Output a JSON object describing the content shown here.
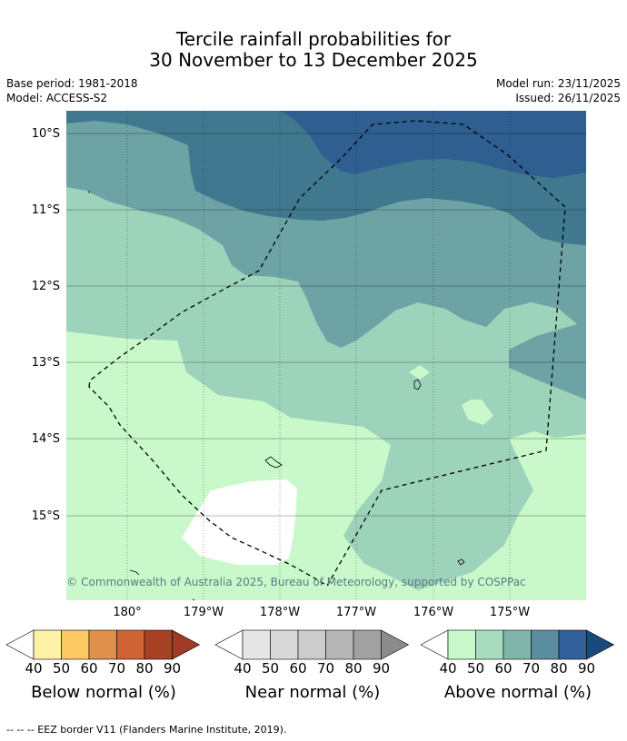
{
  "title": {
    "line1": "Tercile rainfall probabilities for",
    "line2": "30 November to 13 December 2025"
  },
  "meta": {
    "base_period": "Base period: 1981-2018",
    "model": "Model: ACCESS-S2",
    "model_run": "Model run: 23/11/2025",
    "issued": "Issued: 26/11/2025"
  },
  "map": {
    "lat_labels": [
      "10°S",
      "11°S",
      "12°S",
      "13°S",
      "14°S",
      "15°S"
    ],
    "lon_labels": [
      "180°",
      "179°W",
      "178°W",
      "177°W",
      "176°W",
      "175°W"
    ],
    "copyright": "© Commonwealth of Australia 2025, Bureau of Meteorology, supported by COSPPac",
    "colors": {
      "above_40": "#c9f9ca",
      "above_50": "#9ed3bb",
      "above_60": "#6ea3a5",
      "above_70": "#40798f",
      "above_80": "#2f5e90",
      "eez_line": "#000000"
    }
  },
  "colorbars": [
    {
      "name": "below",
      "title": "Below normal (%)",
      "ticks": [
        "40",
        "50",
        "60",
        "70",
        "80",
        "90"
      ],
      "colors": [
        "#ffffff",
        "#fff1a6",
        "#fdc964",
        "#e0904a",
        "#cf6334",
        "#a94124",
        "#a03a26"
      ]
    },
    {
      "name": "near",
      "title": "Near normal (%)",
      "ticks": [
        "40",
        "50",
        "60",
        "70",
        "80",
        "90"
      ],
      "colors": [
        "#ffffff",
        "#e6e6e6",
        "#d9d9d9",
        "#cccccc",
        "#b7b7b7",
        "#a1a1a1",
        "#8c8c8c"
      ]
    },
    {
      "name": "above",
      "title": "Above normal (%)",
      "ticks": [
        "40",
        "50",
        "60",
        "70",
        "80",
        "90"
      ],
      "colors": [
        "#ffffff",
        "#c9f9ca",
        "#a9dcbf",
        "#80b5aa",
        "#5a8e9f",
        "#33609b",
        "#1a4a7d"
      ]
    }
  ],
  "footer": "--  --  -- EEZ border V11 (Flanders Marine Institute, 2019)."
}
